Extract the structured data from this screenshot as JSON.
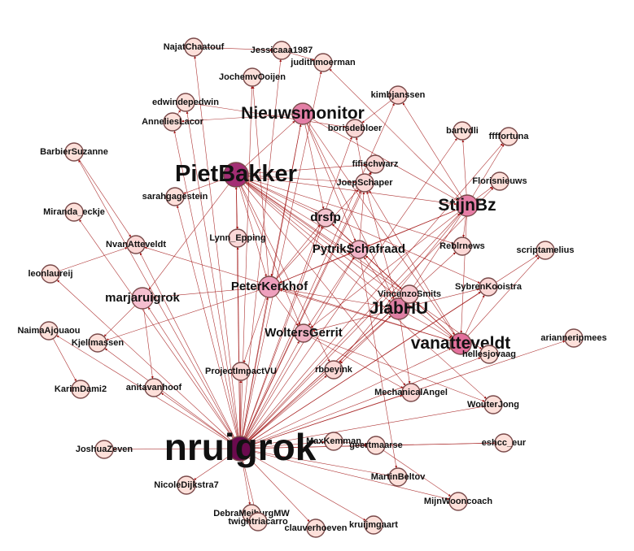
{
  "graph": {
    "colors": {
      "edge": "#a01010",
      "node_stroke": "#7a4a4a",
      "label": "#111111"
    },
    "nodes": [
      {
        "id": "nruigrok",
        "label": "nruigrok",
        "level": 5,
        "size": "xl",
        "fill": "#6b0a4e"
      },
      {
        "id": "pietbakker",
        "label": "PietBakker",
        "level": 4,
        "size": "lg",
        "fill": "#a32e74"
      },
      {
        "id": "nieuwsmonitor",
        "label": "Nieuwsmonitor",
        "level": 3,
        "size": "md",
        "fill": "#e37fa6"
      },
      {
        "id": "stijnbz",
        "label": "StijnBz",
        "level": 3,
        "size": "md",
        "fill": "#e67ea6"
      },
      {
        "id": "jlabhu",
        "label": "JlabHU",
        "level": 3,
        "size": "md",
        "fill": "#df7fa4"
      },
      {
        "id": "vanatteveldt",
        "label": "vanatteveldt",
        "level": 3,
        "size": "md",
        "fill": "#e3709c"
      },
      {
        "id": "peterkerkhof",
        "label": "PeterKerkhof",
        "level": 2,
        "size": "md",
        "fill": "#eea0bd"
      },
      {
        "id": "marjaruigrok",
        "label": "marjaruigrok",
        "level": 2,
        "size": "md",
        "fill": "#f6bfd0"
      },
      {
        "id": "pytrikschafraad",
        "label": "PytrikSchafraad",
        "level": 2,
        "size": "sm",
        "fill": "#f1b4c8"
      },
      {
        "id": "wolterserrit",
        "label": "WoltersGerrit",
        "level": 2,
        "size": "sm",
        "fill": "#f0b3c4"
      },
      {
        "id": "drsfp",
        "label": "drsfp",
        "level": 2,
        "size": "sm",
        "fill": "#f4c4cf"
      },
      {
        "id": "joepschaper",
        "label": "JoepSchaper",
        "level": 1,
        "size": "sm",
        "fill": "#fbd9d8"
      },
      {
        "id": "lynn_epping",
        "label": "Lynn_Epping",
        "level": 1,
        "size": "sm",
        "fill": "#fbd8d8"
      },
      {
        "id": "najatchaatouf",
        "label": "NajatChaatouf",
        "level": 1,
        "size": "sm",
        "fill": "#fde0da"
      },
      {
        "id": "jessicaaa1987",
        "label": "Jessicaaa1987",
        "level": 1,
        "size": "sm",
        "fill": "#fde0da"
      },
      {
        "id": "judithmoerman",
        "label": "judithmoerman",
        "level": 1,
        "size": "sm",
        "fill": "#fde0da"
      },
      {
        "id": "jochemvooijen",
        "label": "JochemvOoijen",
        "level": 1,
        "size": "sm",
        "fill": "#fde0da"
      },
      {
        "id": "kimbjanssen",
        "label": "kimbjanssen",
        "level": 1,
        "size": "sm",
        "fill": "#fbd5d2"
      },
      {
        "id": "edwindepedwin",
        "label": "edwindepedwin",
        "level": 1,
        "size": "sm",
        "fill": "#fde0da"
      },
      {
        "id": "borisdebloer",
        "label": "borisdebloer",
        "level": 1,
        "size": "sm",
        "fill": "#fbd8d6"
      },
      {
        "id": "annelieslacor",
        "label": "AnneliesLacor",
        "level": 1,
        "size": "sm",
        "fill": "#fde0da"
      },
      {
        "id": "bartvdli",
        "label": "bartvdli",
        "level": 1,
        "size": "sm",
        "fill": "#fde0da"
      },
      {
        "id": "ffffortuna",
        "label": "ffffortuna",
        "level": 1,
        "size": "sm",
        "fill": "#fde0da"
      },
      {
        "id": "barbiersuzanne",
        "label": "BarbierSuzanne",
        "level": 1,
        "size": "sm",
        "fill": "#fde0da"
      },
      {
        "id": "fifischwarz",
        "label": "fifischwarz",
        "level": 1,
        "size": "sm",
        "fill": "#fbd8d6"
      },
      {
        "id": "florisnieuws",
        "label": "Florisnieuws",
        "level": 1,
        "size": "sm",
        "fill": "#fde0da"
      },
      {
        "id": "sarahgagestein",
        "label": "sarahgagestein",
        "level": 1,
        "size": "sm",
        "fill": "#fde0da"
      },
      {
        "id": "miranda_eckje",
        "label": "Miranda_eckje",
        "level": 1,
        "size": "sm",
        "fill": "#fde0da"
      },
      {
        "id": "reblrnews",
        "label": "Reblrnews",
        "level": 1,
        "size": "sm",
        "fill": "#fbd8d6"
      },
      {
        "id": "nvanatteveldt",
        "label": "NvanAtteveldt",
        "level": 1,
        "size": "sm",
        "fill": "#fbd8d6"
      },
      {
        "id": "scriptamelius",
        "label": "scriptamelius",
        "level": 1,
        "size": "sm",
        "fill": "#fde0da"
      },
      {
        "id": "leonlaureij",
        "label": "leonlaureij",
        "level": 1,
        "size": "sm",
        "fill": "#fde0da"
      },
      {
        "id": "sybrenkooistra",
        "label": "SybrenKooistra",
        "level": 1,
        "size": "sm",
        "fill": "#fbd8d6"
      },
      {
        "id": "vincenzosmits",
        "label": "VincenzoSmits",
        "level": 1,
        "size": "sm",
        "fill": "#f7c9cf"
      },
      {
        "id": "arianneripmees",
        "label": "arianneripmees",
        "level": 1,
        "size": "sm",
        "fill": "#fde0da"
      },
      {
        "id": "naimaajouaou",
        "label": "NaimaAjouaou",
        "level": 1,
        "size": "sm",
        "fill": "#fde0da"
      },
      {
        "id": "kjellmassen",
        "label": "Kjellmassen",
        "level": 1,
        "size": "sm",
        "fill": "#fde0da"
      },
      {
        "id": "hellesjovaag",
        "label": "hellesjovaag",
        "level": 1,
        "size": "sm",
        "fill": "#fde0da"
      },
      {
        "id": "projectimpactvu",
        "label": "ProjectImpactVU",
        "level": 1,
        "size": "sm",
        "fill": "#fbd8d6"
      },
      {
        "id": "rboeyink",
        "label": "rboeyink",
        "level": 1,
        "size": "sm",
        "fill": "#fbd8d6"
      },
      {
        "id": "karimdami2",
        "label": "KarimDami2",
        "level": 1,
        "size": "sm",
        "fill": "#fde0da"
      },
      {
        "id": "anitavanhoof",
        "label": "anitavanhoof",
        "level": 1,
        "size": "sm",
        "fill": "#fde0da"
      },
      {
        "id": "mechanicalangel",
        "label": "MechanicalAngel",
        "level": 1,
        "size": "sm",
        "fill": "#fbd8d6"
      },
      {
        "id": "wouterjong",
        "label": "WouterJong",
        "level": 1,
        "size": "sm",
        "fill": "#fde0da"
      },
      {
        "id": "joshuazeven",
        "label": "JoshuaZeven",
        "level": 1,
        "size": "sm",
        "fill": "#fde0da"
      },
      {
        "id": "maxkemman",
        "label": "MaxKemman",
        "level": 1,
        "size": "sm",
        "fill": "#fde0da"
      },
      {
        "id": "geertmaarse",
        "label": "geertmaarse",
        "level": 1,
        "size": "sm",
        "fill": "#fde0da"
      },
      {
        "id": "eshcc_eur",
        "label": "eshcc_eur",
        "level": 1,
        "size": "sm",
        "fill": "#fde0da"
      },
      {
        "id": "nicoledijkstra7",
        "label": "NicoleDijkstra7",
        "level": 1,
        "size": "sm",
        "fill": "#fde0da"
      },
      {
        "id": "martinbeltov",
        "label": "MartinBeltov",
        "level": 1,
        "size": "sm",
        "fill": "#fde0da"
      },
      {
        "id": "mijnwooncoach",
        "label": "MijnWooncoach",
        "level": 1,
        "size": "sm",
        "fill": "#fde0da"
      },
      {
        "id": "debrameiburgmw",
        "label": "DebraMeiburgMW",
        "level": 1,
        "size": "sm",
        "fill": "#fde0da"
      },
      {
        "id": "twightriacarro",
        "label": "twightriacarro",
        "level": 1,
        "size": "sm",
        "fill": "#fde0da"
      },
      {
        "id": "clauverhoeven",
        "label": "clauverhoeven",
        "level": 1,
        "size": "sm",
        "fill": "#fde0da"
      },
      {
        "id": "kruijmgaart",
        "label": "kruijmgaart",
        "level": 1,
        "size": "sm",
        "fill": "#fde0da"
      }
    ],
    "edges": [
      [
        "nruigrok",
        "pietbakker"
      ],
      [
        "nruigrok",
        "nieuwsmonitor"
      ],
      [
        "nruigrok",
        "stijnbz"
      ],
      [
        "nruigrok",
        "jlabhu"
      ],
      [
        "nruigrok",
        "vanatteveldt"
      ],
      [
        "nruigrok",
        "peterkerkhof"
      ],
      [
        "nruigrok",
        "marjaruigrok"
      ],
      [
        "nruigrok",
        "pytrikschafraad"
      ],
      [
        "nruigrok",
        "wolterserrit"
      ],
      [
        "nruigrok",
        "drsfp"
      ],
      [
        "nruigrok",
        "joepschaper"
      ],
      [
        "nruigrok",
        "lynn_epping"
      ],
      [
        "nruigrok",
        "najatchaatouf"
      ],
      [
        "nruigrok",
        "jessicaaa1987"
      ],
      [
        "nruigrok",
        "jochemvooijen"
      ],
      [
        "nruigrok",
        "kimbjanssen"
      ],
      [
        "nruigrok",
        "edwindepedwin"
      ],
      [
        "nruigrok",
        "annelieslacor"
      ],
      [
        "nruigrok",
        "bartvdli"
      ],
      [
        "nruigrok",
        "ffffortuna"
      ],
      [
        "nruigrok",
        "barbiersuzanne"
      ],
      [
        "nruigrok",
        "fifischwarz"
      ],
      [
        "nruigrok",
        "florisnieuws"
      ],
      [
        "nruigrok",
        "sarahgagestein"
      ],
      [
        "nruigrok",
        "miranda_eckje"
      ],
      [
        "nruigrok",
        "reblrnews"
      ],
      [
        "nruigrok",
        "nvanatteveldt"
      ],
      [
        "nruigrok",
        "scriptamelius"
      ],
      [
        "nruigrok",
        "leonlaureij"
      ],
      [
        "nruigrok",
        "sybrenkooistra"
      ],
      [
        "nruigrok",
        "vincenzosmits"
      ],
      [
        "nruigrok",
        "arianneripmees"
      ],
      [
        "nruigrok",
        "naimaajouaou"
      ],
      [
        "nruigrok",
        "kjellmassen"
      ],
      [
        "nruigrok",
        "hellesjovaag"
      ],
      [
        "nruigrok",
        "projectimpactvu"
      ],
      [
        "nruigrok",
        "rboeyink"
      ],
      [
        "nruigrok",
        "anitavanhoof"
      ],
      [
        "nruigrok",
        "mechanicalangel"
      ],
      [
        "nruigrok",
        "wouterjong"
      ],
      [
        "nruigrok",
        "joshuazeven"
      ],
      [
        "nruigrok",
        "maxkemman"
      ],
      [
        "nruigrok",
        "geertmaarse"
      ],
      [
        "nruigrok",
        "eshcc_eur"
      ],
      [
        "nruigrok",
        "nicoledijkstra7"
      ],
      [
        "nruigrok",
        "martinbeltov"
      ],
      [
        "nruigrok",
        "mijnwooncoach"
      ],
      [
        "nruigrok",
        "debrameiburgmw"
      ],
      [
        "nruigrok",
        "twightriacarro"
      ],
      [
        "nruigrok",
        "clauverhoeven"
      ],
      [
        "nruigrok",
        "kruijmgaart"
      ],
      [
        "nruigrok",
        "borisdebloer"
      ],
      [
        "nruigrok",
        "judithmoerman"
      ],
      [
        "pietbakker",
        "nieuwsmonitor"
      ],
      [
        "pietbakker",
        "stijnbz"
      ],
      [
        "pietbakker",
        "jlabhu"
      ],
      [
        "pietbakker",
        "vanatteveldt"
      ],
      [
        "pietbakker",
        "peterkerkhof"
      ],
      [
        "pietbakker",
        "pytrikschafraad"
      ],
      [
        "pietbakker",
        "drsfp"
      ],
      [
        "pietbakker",
        "joepschaper"
      ],
      [
        "pietbakker",
        "wolterserrit"
      ],
      [
        "pietbakker",
        "marjaruigrok"
      ],
      [
        "pietbakker",
        "sybrenkooistra"
      ],
      [
        "pietbakker",
        "vincenzosmits"
      ],
      [
        "pietbakker",
        "reblrnews"
      ],
      [
        "pietbakker",
        "mechanicalangel"
      ],
      [
        "pietbakker",
        "wouterjong"
      ],
      [
        "pietbakker",
        "rboeyink"
      ],
      [
        "pietbakker",
        "lynn_epping"
      ],
      [
        "pietbakker",
        "sarahgagestein"
      ],
      [
        "pietbakker",
        "fifischwarz"
      ],
      [
        "pietbakker",
        "hellesjovaag"
      ],
      [
        "nieuwsmonitor",
        "stijnbz"
      ],
      [
        "nieuwsmonitor",
        "jlabhu"
      ],
      [
        "nieuwsmonitor",
        "vanatteveldt"
      ],
      [
        "nieuwsmonitor",
        "annelieslacor"
      ],
      [
        "nieuwsmonitor",
        "peterkerkhof"
      ],
      [
        "nieuwsmonitor",
        "drsfp"
      ],
      [
        "nieuwsmonitor",
        "pytrikschafraad"
      ],
      [
        "stijnbz",
        "jlabhu"
      ],
      [
        "stijnbz",
        "vanatteveldt"
      ],
      [
        "stijnbz",
        "pytrikschafraad"
      ],
      [
        "stijnbz",
        "peterkerkhof"
      ],
      [
        "stijnbz",
        "wolterserrit"
      ],
      [
        "stijnbz",
        "bartvdli"
      ],
      [
        "stijnbz",
        "florisnieuws"
      ],
      [
        "stijnbz",
        "kimbjanssen"
      ],
      [
        "stijnbz",
        "judithmoerman"
      ],
      [
        "stijnbz",
        "rboeyink"
      ],
      [
        "stijnbz",
        "reblrnews"
      ],
      [
        "stijnbz",
        "ffffortuna"
      ],
      [
        "jlabhu",
        "vanatteveldt"
      ],
      [
        "jlabhu",
        "pytrikschafraad"
      ],
      [
        "jlabhu",
        "wolterserrit"
      ],
      [
        "jlabhu",
        "peterkerkhof"
      ],
      [
        "jlabhu",
        "joepschaper"
      ],
      [
        "jlabhu",
        "mechanicalangel"
      ],
      [
        "jlabhu",
        "rboeyink"
      ],
      [
        "jlabhu",
        "sybrenkooistra"
      ],
      [
        "vanatteveldt",
        "pytrikschafraad"
      ],
      [
        "vanatteveldt",
        "peterkerkhof"
      ],
      [
        "vanatteveldt",
        "joepschaper"
      ],
      [
        "vanatteveldt",
        "drsfp"
      ],
      [
        "vanatteveldt",
        "nvanatteveldt"
      ],
      [
        "vanatteveldt",
        "sybrenkooistra"
      ],
      [
        "vanatteveldt",
        "scriptamelius"
      ],
      [
        "peterkerkhof",
        "marjaruigrok"
      ],
      [
        "peterkerkhof",
        "pytrikschafraad"
      ],
      [
        "peterkerkhof",
        "joepschaper"
      ],
      [
        "peterkerkhof",
        "drsfp"
      ],
      [
        "peterkerkhof",
        "wolterserrit"
      ],
      [
        "peterkerkhof",
        "jochemvooijen"
      ],
      [
        "peterkerkhof",
        "kjellmassen"
      ],
      [
        "peterkerkhof",
        "projectimpactvu"
      ],
      [
        "marjaruigrok",
        "anitavanhoof"
      ],
      [
        "marjaruigrok",
        "kjellmassen"
      ],
      [
        "pytrikschafraad",
        "drsfp"
      ],
      [
        "pytrikschafraad",
        "joepschaper"
      ],
      [
        "pytrikschafraad",
        "wolterserrit"
      ],
      [
        "pytrikschafraad",
        "martinbeltov"
      ],
      [
        "wolterserrit",
        "mechanicalangel"
      ],
      [
        "wolterserrit",
        "wouterjong"
      ],
      [
        "joepschaper",
        "fifischwarz"
      ],
      [
        "joepschaper",
        "borisdebloer"
      ],
      [
        "naimaajouaou",
        "karimdami2"
      ],
      [
        "leonlaureij",
        "nvanatteveldt"
      ],
      [
        "barbiersuzanne",
        "nvanatteveldt"
      ],
      [
        "maxkemman",
        "geertmaarse"
      ],
      [
        "geertmaarse",
        "mijnwooncoach"
      ],
      [
        "geertmaarse",
        "eshcc_eur"
      ],
      [
        "jessicaaa1987",
        "judithmoerman"
      ],
      [
        "edwindepedwin",
        "borisdebloer"
      ],
      [
        "annelieslacor",
        "edwindepedwin"
      ],
      [
        "kimbjanssen",
        "borisdebloer"
      ],
      [
        "najatchaatouf",
        "jessicaaa1987"
      ]
    ]
  }
}
